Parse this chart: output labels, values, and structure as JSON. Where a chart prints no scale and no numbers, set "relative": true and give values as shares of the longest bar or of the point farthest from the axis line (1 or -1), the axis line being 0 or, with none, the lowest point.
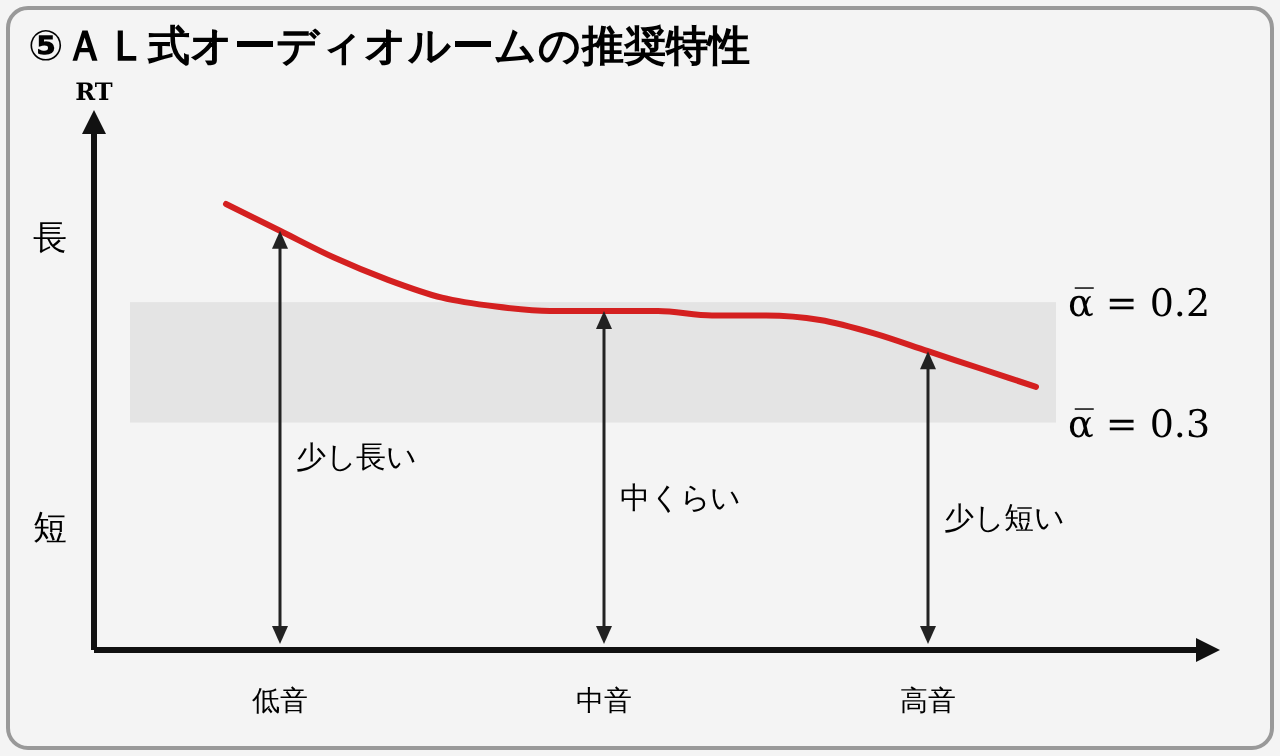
{
  "chart_data": {
    "type": "line",
    "title": "⑤ＡＬ式オーディオルームの推奨特性",
    "relative": true,
    "categories": [
      null,
      "低音",
      null,
      null,
      null,
      null,
      null,
      "中音",
      null,
      null,
      null,
      null,
      null,
      "高音",
      null,
      null
    ],
    "series": [
      {
        "color": "#d42020",
        "values": [
          1,
          0.94,
          0.88,
          0.83,
          0.79,
          0.77,
          0.76,
          0.76,
          0.76,
          0.75,
          0.75,
          0.74,
          0.71,
          0.67,
          0.63,
          0.59
        ]
      }
    ],
    "bands": [
      {
        "axis": "y",
        "from": 0.51,
        "to": 0.78,
        "color": "#e4e4e4"
      }
    ],
    "annotations": [
      "長",
      "短",
      "α̅ = 0.2",
      "α̅ = 0.3",
      "少し長い",
      "中くらい",
      "少し短い",
      "RT"
    ],
    "marker": "none",
    "line_style": "solid"
  }
}
